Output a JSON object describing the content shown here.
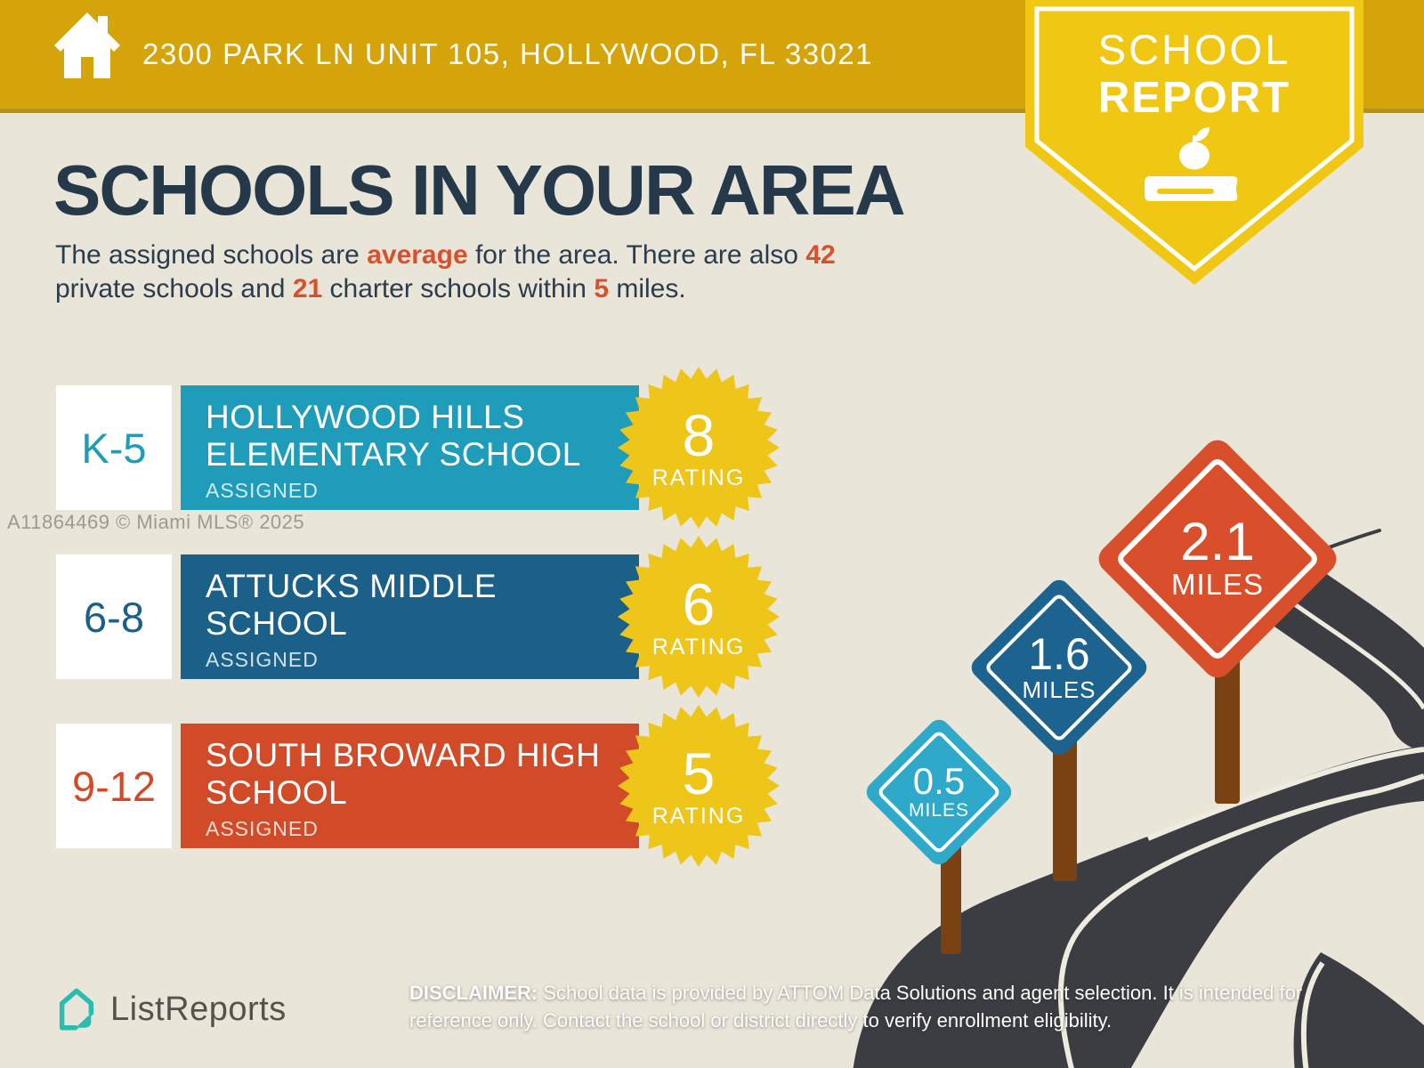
{
  "colors": {
    "background": "#EAE5D9",
    "banner_gold": "#D4A40A",
    "badge_yellow": "#F0C713",
    "title_navy": "#26394A",
    "accent_orange": "#D8502C",
    "elementary_teal": "#1E9CBA",
    "middle_blue": "#1A6089",
    "high_red": "#D14B28",
    "starburst_yellow": "#EEC619",
    "road_charcoal": "#3B3D42",
    "post_brown": "#7A4113",
    "logo_teal": "#2ABCB0"
  },
  "icons": {
    "banner": "home-icon",
    "badge": [
      "apple-icon",
      "book-icon"
    ],
    "footer": "listreports-logo-icon"
  },
  "banner": {
    "address": "2300 PARK LN UNIT 105, HOLLYWOOD, FL 33021"
  },
  "badge": {
    "line1": "SCHOOL",
    "line2": "REPORT"
  },
  "intro": {
    "title": "SCHOOLS IN YOUR AREA",
    "line1_a": "The assigned schools are ",
    "line1_b": "average",
    "line1_c": " for the area. There are also ",
    "line1_d": "42",
    "line2_a": "private schools and ",
    "line2_b": "21",
    "line2_c": " charter schools within ",
    "line2_d": "5",
    "line2_e": " miles."
  },
  "schools": [
    {
      "grades": "K-5",
      "name_line1": "HOLLYWOOD HILLS",
      "name_line2": "ELEMENTARY SCHOOL",
      "status": "ASSIGNED",
      "rating": "8",
      "rating_label": "RATING"
    },
    {
      "grades": "6-8",
      "name_line1": "ATTUCKS MIDDLE",
      "name_line2": "SCHOOL",
      "status": "ASSIGNED",
      "rating": "6",
      "rating_label": "RATING"
    },
    {
      "grades": "9-12",
      "name_line1": "SOUTH BROWARD HIGH",
      "name_line2": "SCHOOL",
      "status": "ASSIGNED",
      "rating": "5",
      "rating_label": "RATING"
    }
  ],
  "signs": [
    {
      "distance": "0.5",
      "unit": "MILES"
    },
    {
      "distance": "1.6",
      "unit": "MILES"
    },
    {
      "distance": "2.1",
      "unit": "MILES"
    }
  ],
  "watermark": "A11864469 © Miami MLS® 2025",
  "footer": {
    "brand": "ListReports",
    "disclaimer_label": "DISCLAIMER:",
    "disclaimer_line1": " School data is provided by ATTOM Data Solutions and agent selection. It is intended",
    "disclaimer_line2": "for reference only. Contact the school or district directly to verify enrollment eligibility."
  }
}
